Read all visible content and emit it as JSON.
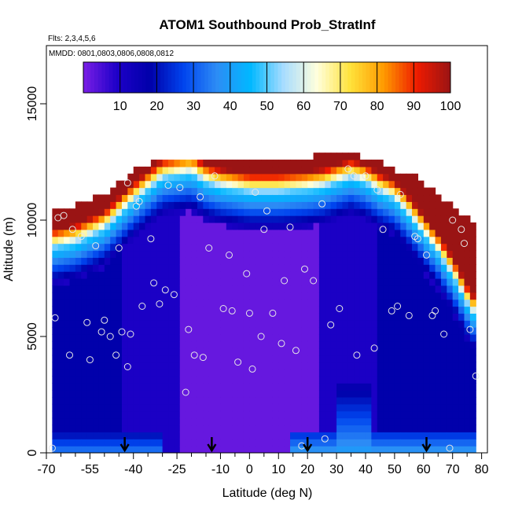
{
  "chart_data": {
    "type": "heatmap",
    "title": "ATOM1 Southbound Prob_StratInf",
    "subtitle_flights": "Flts: 2,3,4,5,6",
    "subtitle_dates": "MMDD: 0801,0803,0806,0808,0812",
    "xlabel": "Latitude (deg N)",
    "ylabel": "Altitude (m)",
    "xlim": [
      -70,
      82
    ],
    "ylim": [
      0,
      17500
    ],
    "x_ticks": [
      -70,
      -55,
      -40,
      -25,
      -10,
      0,
      10,
      20,
      30,
      40,
      50,
      60,
      70,
      80
    ],
    "x_minor_ticks": [
      -65,
      -60,
      -50,
      -45,
      -35,
      -30,
      -20,
      -15,
      -5,
      5,
      15,
      25,
      35,
      45,
      55,
      65,
      75
    ],
    "y_ticks": [
      0,
      5000,
      10000,
      15000
    ],
    "colorbar": {
      "min": 0,
      "max": 100,
      "ticks": [
        10,
        20,
        30,
        40,
        50,
        60,
        70,
        80,
        90,
        100
      ],
      "colors": [
        "#7a1fe6",
        "#1e00c8",
        "#0000aa",
        "#0044ee",
        "#2d8cf5",
        "#00b8ff",
        "#a8dcff",
        "#ffffdc",
        "#ffe23a",
        "#ff9a00",
        "#ee1a00",
        "#9a1414"
      ]
    },
    "profile": {
      "lat": [
        -68,
        -60,
        -50,
        -40,
        -30,
        -20,
        -15,
        -10,
        0,
        10,
        20,
        25,
        30,
        35,
        40,
        45,
        50,
        55,
        60,
        65,
        70,
        75,
        78
      ],
      "top_altitude": [
        10500,
        10500,
        11000,
        12000,
        12500,
        12500,
        12500,
        12500,
        12500,
        12500,
        12500,
        12800,
        12800,
        12800,
        12500,
        12500,
        12000,
        12000,
        11500,
        11000,
        10500,
        10000,
        9800
      ],
      "tropopause_altitude": [
        8800,
        9000,
        9600,
        10800,
        11800,
        12000,
        11600,
        11400,
        11200,
        11200,
        11300,
        11400,
        11600,
        11800,
        11600,
        11200,
        10900,
        10200,
        9400,
        8600,
        7600,
        6400,
        5800
      ]
    },
    "observations": {
      "lat": [
        -67,
        -64,
        -61,
        -58,
        -56,
        -53,
        -51,
        -48,
        -46,
        -44,
        -42,
        -41,
        -39,
        -37,
        -34,
        -31,
        -29,
        -26,
        -24,
        -22,
        -19,
        -17,
        -14,
        -12,
        -9,
        -7,
        -4,
        -1,
        0,
        2,
        4,
        6,
        8,
        11,
        14,
        16,
        19,
        22,
        25,
        28,
        31,
        34,
        37,
        40,
        43,
        46,
        49,
        52,
        55,
        58,
        61,
        64,
        67,
        70,
        73,
        76,
        78,
        -68,
        -66,
        -62,
        -55,
        -50,
        -45,
        -42,
        -38,
        -33,
        -28,
        -21,
        -16,
        -6,
        1,
        5,
        12,
        18,
        26,
        36,
        44,
        51,
        57,
        63,
        69,
        74
      ],
      "altitude": [
        5800,
        10200,
        9600,
        9300,
        5600,
        8900,
        5200,
        5000,
        4200,
        5200,
        3700,
        5100,
        10600,
        6300,
        9200,
        6400,
        7000,
        6800,
        11400,
        2600,
        4200,
        11000,
        8800,
        11900,
        6200,
        8500,
        3900,
        7700,
        6000,
        11200,
        5000,
        10400,
        6000,
        4700,
        9700,
        4400,
        7900,
        7400,
        10700,
        5500,
        6200,
        12200,
        4200,
        11900,
        4500,
        9600,
        6100,
        11100,
        5900,
        9200,
        8500,
        6100,
        5100,
        10000,
        9600,
        5300,
        3300,
        200,
        10100,
        4200,
        4000,
        5700,
        8800,
        11600,
        10800,
        7300,
        11500,
        5300,
        4100,
        6100,
        3600,
        9600,
        7400,
        300,
        600,
        11900,
        11300,
        6300,
        9300,
        5900,
        200,
        9000
      ],
      "marker": "open circle",
      "color": "#e6e6e6"
    },
    "flight_markers_lat": [
      -43,
      -13,
      20,
      61
    ],
    "surface_low_regions": [
      {
        "lat_from": -68,
        "lat_to": -30,
        "prob": 20
      },
      {
        "lat_from": 15,
        "lat_to": 78,
        "prob": 25
      }
    ]
  }
}
